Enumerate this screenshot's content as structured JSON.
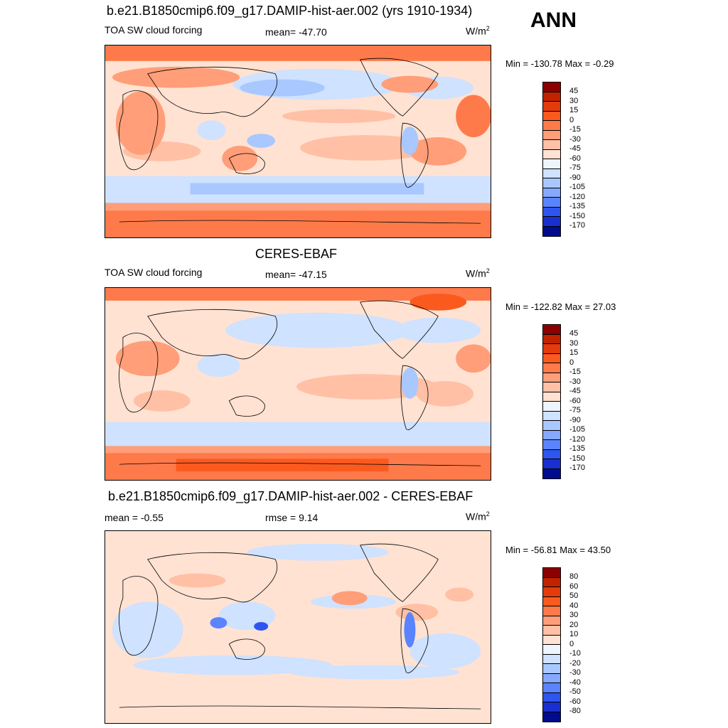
{
  "season": "ANN",
  "units_base": "W/m",
  "units_exp": "2",
  "panels": [
    {
      "title": "b.e21.B1850cmip6.f09_g17.DAMIP-hist-aer.002 (yrs 1910-1934)",
      "left_label": "TOA SW cloud forcing",
      "center_label": "mean= -47.70",
      "minmax": "Min = -130.78 Max =  -0.29"
    },
    {
      "title": "CERES-EBAF",
      "left_label": "TOA SW cloud forcing",
      "center_label": "mean= -47.15",
      "minmax": "Min = -122.82 Max =  27.03"
    },
    {
      "title": "b.e21.B1850cmip6.f09_g17.DAMIP-hist-aer.002 - CERES-EBAF",
      "left_label": "mean =  -0.55",
      "center_label": "rmse =   9.14",
      "minmax": "Min = -56.81 Max =  43.50"
    }
  ],
  "colorbar_main": {
    "labels": [
      "45",
      "30",
      "15",
      "0",
      "-15",
      "-30",
      "-45",
      "-60",
      "-75",
      "-90",
      "-105",
      "-120",
      "-135",
      "-150",
      "-170"
    ],
    "colors": [
      "#8b0000",
      "#c32200",
      "#e33b0c",
      "#fb5a1f",
      "#ff7a4a",
      "#ff9e78",
      "#ffc0a5",
      "#ffe2d2",
      "#eef5ff",
      "#cfe2ff",
      "#a8c8ff",
      "#86a9ff",
      "#5a84ff",
      "#2f55f0",
      "#1a2fd0",
      "#000c8c"
    ]
  },
  "colorbar_diff": {
    "labels": [
      "80",
      "60",
      "50",
      "40",
      "30",
      "20",
      "10",
      "0",
      "-10",
      "-20",
      "-30",
      "-40",
      "-50",
      "-60",
      "-80"
    ],
    "colors": [
      "#8b0000",
      "#c32200",
      "#e33b0c",
      "#fb5a1f",
      "#ff7a4a",
      "#ff9e78",
      "#ffc0a5",
      "#ffe2d2",
      "#eef5ff",
      "#cfe2ff",
      "#a8c8ff",
      "#86a9ff",
      "#5a84ff",
      "#2f55f0",
      "#1a2fd0",
      "#000c8c"
    ]
  }
}
